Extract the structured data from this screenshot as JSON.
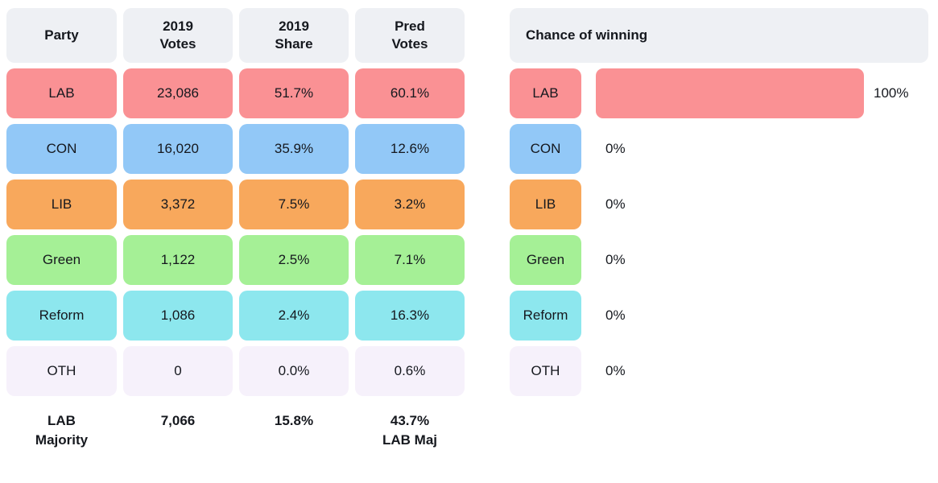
{
  "table": {
    "headers": [
      "Party",
      "2019\nVotes",
      "2019\nShare",
      "Pred\nVotes"
    ],
    "rows": [
      {
        "party": "LAB",
        "votes": "23,086",
        "share": "51.7%",
        "pred": "60.1%",
        "color": "#fa9194"
      },
      {
        "party": "CON",
        "votes": "16,020",
        "share": "35.9%",
        "pred": "12.6%",
        "color": "#92c8f7"
      },
      {
        "party": "LIB",
        "votes": "3,372",
        "share": "7.5%",
        "pred": "3.2%",
        "color": "#f8a85c"
      },
      {
        "party": "Green",
        "votes": "1,122",
        "share": "2.5%",
        "pred": "7.1%",
        "color": "#a5f096"
      },
      {
        "party": "Reform",
        "votes": "1,086",
        "share": "2.4%",
        "pred": "16.3%",
        "color": "#8de7ee"
      },
      {
        "party": "OTH",
        "votes": "0",
        "share": "0.0%",
        "pred": "0.6%",
        "color": "#f6f1fb"
      }
    ],
    "footer": [
      "LAB\nMajority",
      "7,066",
      "15.8%",
      "43.7%\nLAB Maj"
    ]
  },
  "chance_panel": {
    "title": "Chance of winning",
    "rows": [
      {
        "party": "LAB",
        "value_label": "100%",
        "pct": 100,
        "color": "#fa9194"
      },
      {
        "party": "CON",
        "value_label": "0%",
        "pct": 0,
        "color": "#92c8f7"
      },
      {
        "party": "LIB",
        "value_label": "0%",
        "pct": 0,
        "color": "#f8a85c"
      },
      {
        "party": "Green",
        "value_label": "0%",
        "pct": 0,
        "color": "#a5f096"
      },
      {
        "party": "Reform",
        "value_label": "0%",
        "pct": 0,
        "color": "#8de7ee"
      },
      {
        "party": "OTH",
        "value_label": "0%",
        "pct": 0,
        "color": "#f6f1fb"
      }
    ]
  },
  "chart_data": [
    {
      "type": "table",
      "title": "",
      "columns": [
        "Party",
        "2019 Votes",
        "2019 Share",
        "Pred Votes"
      ],
      "rows": [
        [
          "LAB",
          "23,086",
          "51.7%",
          "60.1%"
        ],
        [
          "CON",
          "16,020",
          "35.9%",
          "12.6%"
        ],
        [
          "LIB",
          "3,372",
          "7.5%",
          "3.2%"
        ],
        [
          "Green",
          "1,122",
          "2.5%",
          "7.1%"
        ],
        [
          "Reform",
          "1,086",
          "2.4%",
          "16.3%"
        ],
        [
          "OTH",
          "0",
          "0.0%",
          "0.6%"
        ],
        [
          "LAB Majority",
          "7,066",
          "15.8%",
          "43.7% LAB Maj"
        ]
      ],
      "row_colors": [
        "#fa9194",
        "#92c8f7",
        "#f8a85c",
        "#a5f096",
        "#8de7ee",
        "#f6f1fb"
      ]
    },
    {
      "type": "bar",
      "orientation": "horizontal",
      "title": "Chance of winning",
      "categories": [
        "LAB",
        "CON",
        "LIB",
        "Green",
        "Reform",
        "OTH"
      ],
      "values": [
        100,
        0,
        0,
        0,
        0,
        0
      ],
      "value_labels": [
        "100%",
        "0%",
        "0%",
        "0%",
        "0%",
        "0%"
      ],
      "xlim": [
        0,
        100
      ],
      "grid": false,
      "legend": false,
      "bar_colors": [
        "#fa9194",
        "#92c8f7",
        "#f8a85c",
        "#a5f096",
        "#8de7ee",
        "#f6f1fb"
      ]
    }
  ]
}
